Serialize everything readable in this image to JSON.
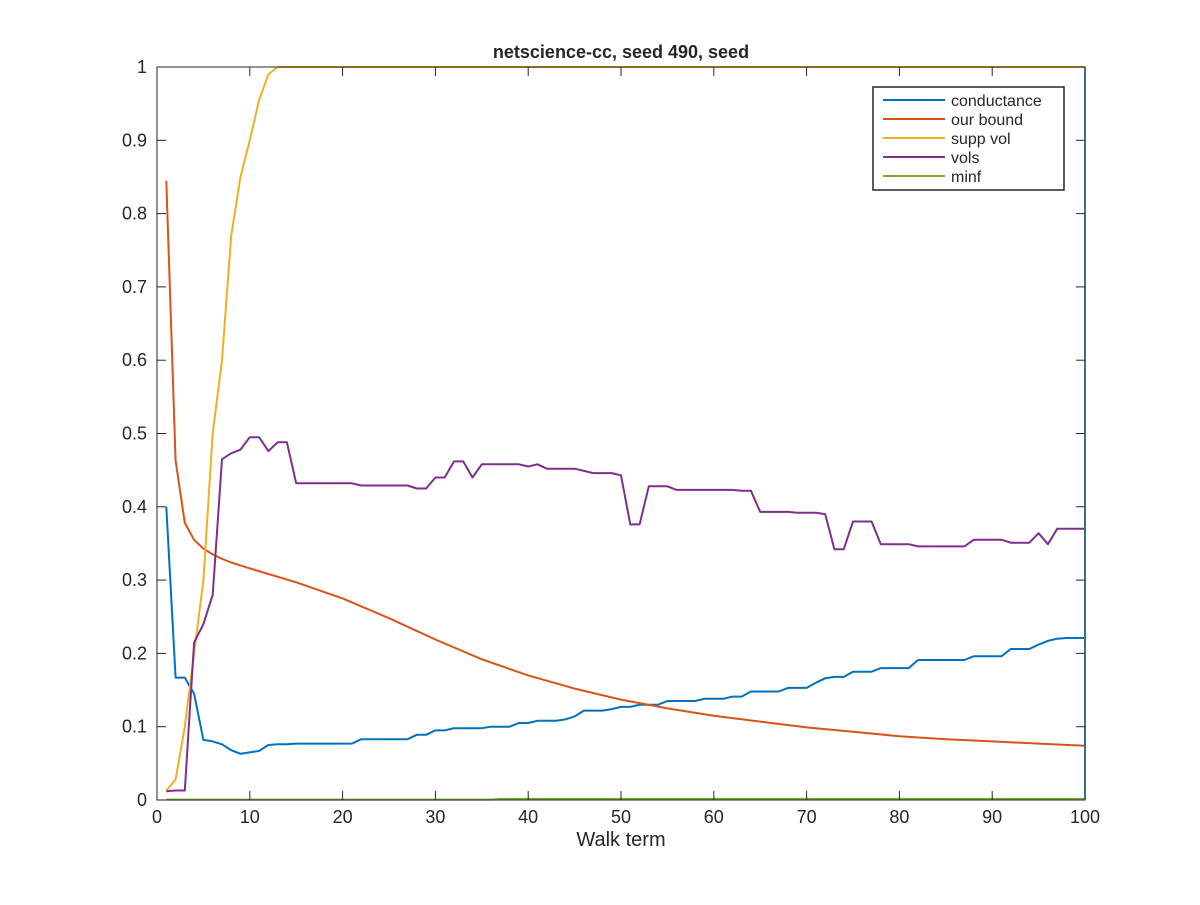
{
  "chart_data": {
    "type": "line",
    "title": "netscience-cc, seed 490, seed",
    "xlabel": "Walk term",
    "ylabel": "",
    "xlim": [
      0,
      100
    ],
    "ylim": [
      0,
      1
    ],
    "xticks": [
      0,
      10,
      20,
      30,
      40,
      50,
      60,
      70,
      80,
      90,
      100
    ],
    "yticks": [
      0,
      0.1,
      0.2,
      0.3,
      0.4,
      0.5,
      0.6,
      0.7,
      0.8,
      0.9,
      1
    ],
    "xtick_labels": [
      "0",
      "10",
      "20",
      "30",
      "40",
      "50",
      "60",
      "70",
      "80",
      "90",
      "100"
    ],
    "ytick_labels": [
      "0",
      "0.1",
      "0.2",
      "0.3",
      "0.4",
      "0.5",
      "0.6",
      "0.7",
      "0.8",
      "0.9",
      "1"
    ],
    "grid": false,
    "legend_position": "top-right",
    "series": [
      {
        "name": "conductance",
        "color": "#0072BD",
        "points": [
          [
            1,
            0.4
          ],
          [
            2,
            0.167
          ],
          [
            3,
            0.167
          ],
          [
            4,
            0.145
          ],
          [
            5,
            0.082
          ],
          [
            6,
            0.08
          ],
          [
            7,
            0.076
          ],
          [
            8,
            0.068
          ],
          [
            9,
            0.063
          ],
          [
            10,
            0.065
          ],
          [
            11,
            0.067
          ],
          [
            12,
            0.075
          ],
          [
            13,
            0.076
          ],
          [
            14,
            0.076
          ],
          [
            15,
            0.077
          ],
          [
            20,
            0.077
          ],
          [
            21,
            0.077
          ],
          [
            22,
            0.083
          ],
          [
            27,
            0.083
          ],
          [
            28,
            0.089
          ],
          [
            29,
            0.089
          ],
          [
            30,
            0.095
          ],
          [
            31,
            0.095
          ],
          [
            32,
            0.098
          ],
          [
            35,
            0.098
          ],
          [
            36,
            0.1
          ],
          [
            38,
            0.1
          ],
          [
            39,
            0.105
          ],
          [
            40,
            0.105
          ],
          [
            41,
            0.108
          ],
          [
            43,
            0.108
          ],
          [
            44,
            0.11
          ],
          [
            45,
            0.114
          ],
          [
            46,
            0.122
          ],
          [
            48,
            0.122
          ],
          [
            49,
            0.124
          ],
          [
            50,
            0.127
          ],
          [
            51,
            0.127
          ],
          [
            52,
            0.13
          ],
          [
            54,
            0.13
          ],
          [
            55,
            0.135
          ],
          [
            58,
            0.135
          ],
          [
            59,
            0.138
          ],
          [
            61,
            0.138
          ],
          [
            62,
            0.141
          ],
          [
            63,
            0.141
          ],
          [
            64,
            0.148
          ],
          [
            67,
            0.148
          ],
          [
            68,
            0.153
          ],
          [
            70,
            0.153
          ],
          [
            71,
            0.16
          ],
          [
            72,
            0.166
          ],
          [
            73,
            0.168
          ],
          [
            74,
            0.168
          ],
          [
            75,
            0.175
          ],
          [
            77,
            0.175
          ],
          [
            78,
            0.18
          ],
          [
            81,
            0.18
          ],
          [
            82,
            0.191
          ],
          [
            87,
            0.191
          ],
          [
            88,
            0.196
          ],
          [
            91,
            0.196
          ],
          [
            92,
            0.206
          ],
          [
            94,
            0.206
          ],
          [
            95,
            0.212
          ],
          [
            96,
            0.217
          ],
          [
            97,
            0.22
          ],
          [
            98,
            0.221
          ],
          [
            100,
            0.221
          ]
        ]
      },
      {
        "name": "our bound",
        "color": "#D95319",
        "points": [
          [
            1,
            0.845
          ],
          [
            2,
            0.463
          ],
          [
            3,
            0.378
          ],
          [
            4,
            0.355
          ],
          [
            5,
            0.343
          ],
          [
            6,
            0.335
          ],
          [
            7,
            0.329
          ],
          [
            8,
            0.324
          ],
          [
            9,
            0.32
          ],
          [
            10,
            0.316
          ],
          [
            15,
            0.297
          ],
          [
            20,
            0.275
          ],
          [
            25,
            0.248
          ],
          [
            30,
            0.219
          ],
          [
            35,
            0.192
          ],
          [
            40,
            0.17
          ],
          [
            45,
            0.152
          ],
          [
            50,
            0.137
          ],
          [
            55,
            0.125
          ],
          [
            60,
            0.115
          ],
          [
            65,
            0.107
          ],
          [
            70,
            0.099
          ],
          [
            75,
            0.093
          ],
          [
            80,
            0.087
          ],
          [
            85,
            0.083
          ],
          [
            90,
            0.08
          ],
          [
            95,
            0.077
          ],
          [
            100,
            0.074
          ]
        ]
      },
      {
        "name": "supp vol",
        "color": "#EDB120",
        "points": [
          [
            1,
            0.013
          ],
          [
            2,
            0.028
          ],
          [
            3,
            0.1
          ],
          [
            4,
            0.2
          ],
          [
            5,
            0.3
          ],
          [
            6,
            0.5
          ],
          [
            7,
            0.6
          ],
          [
            8,
            0.77
          ],
          [
            9,
            0.85
          ],
          [
            10,
            0.9
          ],
          [
            11,
            0.955
          ],
          [
            12,
            0.99
          ],
          [
            13,
            1.0
          ],
          [
            100,
            1.0
          ]
        ]
      },
      {
        "name": "vols",
        "color": "#7E2F8E",
        "points": [
          [
            1,
            0.012
          ],
          [
            2,
            0.013
          ],
          [
            3,
            0.013
          ],
          [
            4,
            0.215
          ],
          [
            5,
            0.24
          ],
          [
            6,
            0.28
          ],
          [
            7,
            0.465
          ],
          [
            8,
            0.473
          ],
          [
            9,
            0.478
          ],
          [
            10,
            0.495
          ],
          [
            11,
            0.495
          ],
          [
            12,
            0.476
          ],
          [
            13,
            0.488
          ],
          [
            14,
            0.488
          ],
          [
            15,
            0.432
          ],
          [
            21,
            0.432
          ],
          [
            22,
            0.429
          ],
          [
            27,
            0.429
          ],
          [
            28,
            0.425
          ],
          [
            29,
            0.425
          ],
          [
            30,
            0.44
          ],
          [
            31,
            0.44
          ],
          [
            32,
            0.462
          ],
          [
            33,
            0.462
          ],
          [
            34,
            0.44
          ],
          [
            35,
            0.458
          ],
          [
            39,
            0.458
          ],
          [
            40,
            0.455
          ],
          [
            41,
            0.458
          ],
          [
            42,
            0.452
          ],
          [
            45,
            0.452
          ],
          [
            46,
            0.449
          ],
          [
            47,
            0.446
          ],
          [
            49,
            0.446
          ],
          [
            50,
            0.443
          ],
          [
            51,
            0.376
          ],
          [
            52,
            0.376
          ],
          [
            53,
            0.428
          ],
          [
            55,
            0.428
          ],
          [
            56,
            0.423
          ],
          [
            62,
            0.423
          ],
          [
            63,
            0.422
          ],
          [
            64,
            0.422
          ],
          [
            65,
            0.393
          ],
          [
            68,
            0.393
          ],
          [
            69,
            0.392
          ],
          [
            71,
            0.392
          ],
          [
            72,
            0.39
          ],
          [
            73,
            0.342
          ],
          [
            74,
            0.342
          ],
          [
            75,
            0.38
          ],
          [
            77,
            0.38
          ],
          [
            78,
            0.349
          ],
          [
            81,
            0.349
          ],
          [
            82,
            0.346
          ],
          [
            87,
            0.346
          ],
          [
            88,
            0.355
          ],
          [
            91,
            0.355
          ],
          [
            92,
            0.351
          ],
          [
            94,
            0.351
          ],
          [
            95,
            0.364
          ],
          [
            96,
            0.349
          ],
          [
            97,
            0.37
          ],
          [
            100,
            0.37
          ]
        ]
      },
      {
        "name": "minf",
        "color": "#77AC30",
        "points": [
          [
            1,
            0.0005
          ],
          [
            36,
            0.0005
          ],
          [
            37,
            0.0015
          ],
          [
            100,
            0.0015
          ]
        ]
      }
    ],
    "extra_series": [
      {
        "color": "#4DBEEE",
        "points": [
          [
            100,
            0.0
          ],
          [
            100,
            1.0
          ]
        ]
      }
    ]
  }
}
